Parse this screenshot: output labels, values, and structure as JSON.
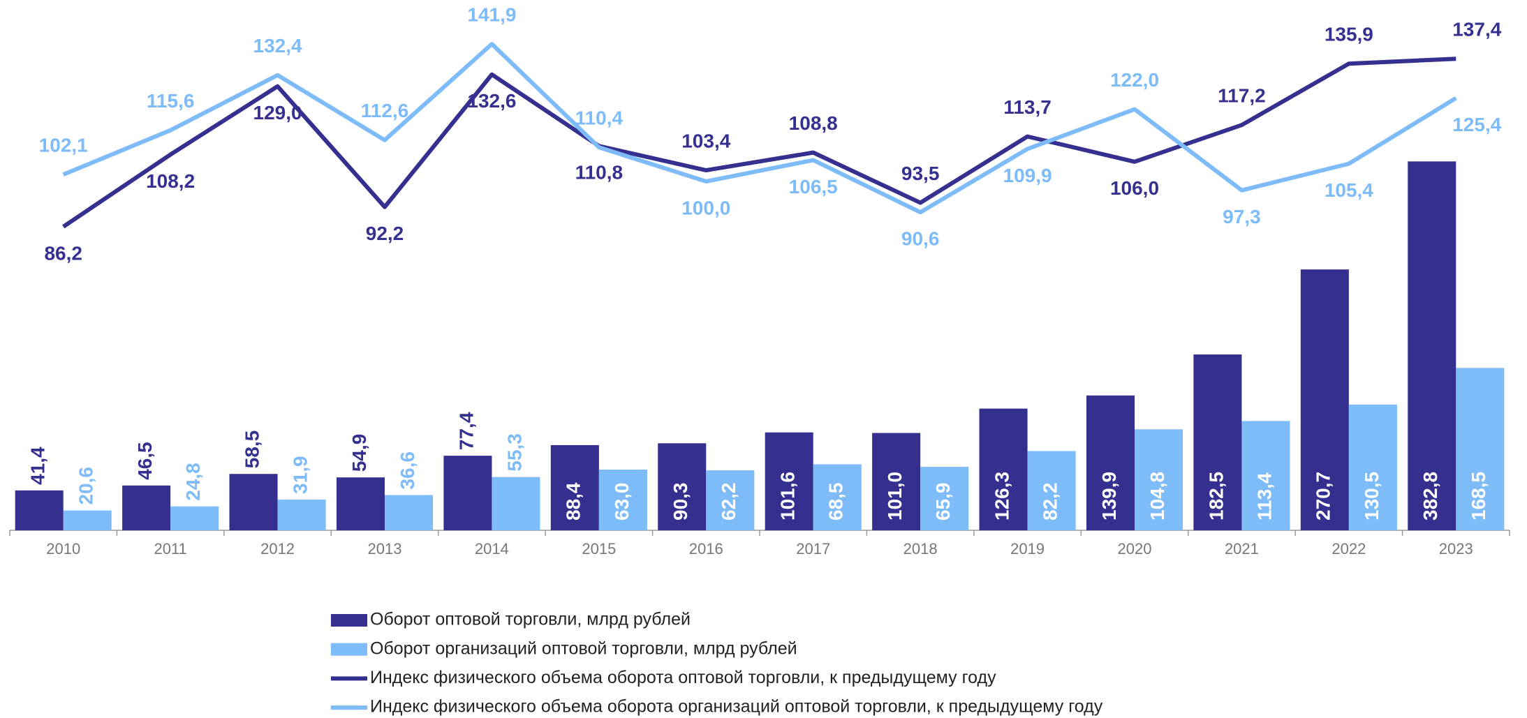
{
  "chart_data": {
    "type": "combo",
    "categories": [
      "2010",
      "2011",
      "2012",
      "2013",
      "2014",
      "2015",
      "2016",
      "2017",
      "2018",
      "2019",
      "2020",
      "2021",
      "2022",
      "2023"
    ],
    "series": [
      {
        "name": "Оборот оптовой торговли, млрд рублей",
        "type": "bar",
        "color": "#35308f",
        "values": [
          41.4,
          46.5,
          58.5,
          54.9,
          77.4,
          88.4,
          90.3,
          101.6,
          101.0,
          126.3,
          139.9,
          182.5,
          270.7,
          382.8
        ],
        "value_labels": [
          "41,4",
          "46,5",
          "58,5",
          "54,9",
          "77,4",
          "88,4",
          "90,3",
          "101,6",
          "101,0",
          "126,3",
          "139,9",
          "182,5",
          "270,7",
          "382,8"
        ]
      },
      {
        "name": "Оборот организаций оптовой торговли, млрд рублей",
        "type": "bar",
        "color": "#7dbbf9",
        "values": [
          20.6,
          24.8,
          31.9,
          36.6,
          55.3,
          63.0,
          62.2,
          68.5,
          65.9,
          82.2,
          104.8,
          113.4,
          130.5,
          168.5
        ],
        "value_labels": [
          "20,6",
          "24,8",
          "31,9",
          "36,6",
          "55,3",
          "63,0",
          "62,2",
          "68,5",
          "65,9",
          "82,2",
          "104,8",
          "113,4",
          "130,5",
          "168,5"
        ]
      },
      {
        "name": "Индекс физического объема оборота оптовой торговли, к предыдущему году",
        "type": "line",
        "color": "#35308f",
        "values": [
          86.2,
          108.2,
          129.0,
          92.2,
          132.6,
          110.8,
          103.4,
          108.8,
          93.5,
          113.7,
          106.0,
          117.2,
          135.9,
          137.4
        ],
        "value_labels": [
          "86,2",
          "108,2",
          "129,0",
          "92,2",
          "132,6",
          "110,8",
          "103,4",
          "108,8",
          "93,5",
          "113,7",
          "106,0",
          "117,2",
          "135,9",
          "137,4"
        ]
      },
      {
        "name": "Индекс физического объема оборота организаций оптовой торговли,  к предыдущему году",
        "type": "line",
        "color": "#7dbbf9",
        "values": [
          102.1,
          115.6,
          132.4,
          112.6,
          141.9,
          110.4,
          100.0,
          106.5,
          90.6,
          109.9,
          122.0,
          97.3,
          105.4,
          125.4
        ],
        "value_labels": [
          "102,1",
          "115,6",
          "132,4",
          "112,6",
          "141,9",
          "110,4",
          "100,0",
          "106,5",
          "90,6",
          "109,9",
          "122,0",
          "97,3",
          "105,4",
          "125,4"
        ]
      }
    ]
  }
}
